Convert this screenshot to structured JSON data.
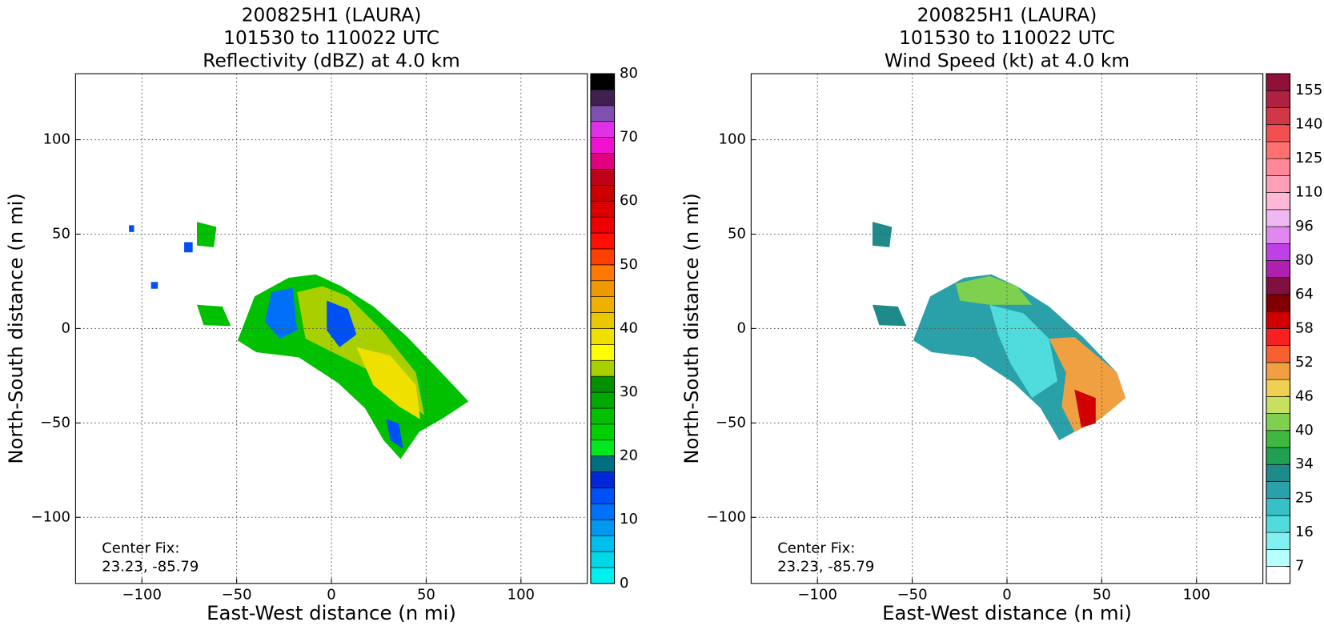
{
  "chart_data": [
    {
      "type": "heatmap",
      "title": [
        "200825H1 (LAURA)",
        "101530 to 110022 UTC",
        "Reflectivity (dBZ) at 4.0 km"
      ],
      "xlabel": "East-West distance (n mi)",
      "ylabel": "North-South distance (n mi)",
      "xlim": [
        -135,
        135
      ],
      "ylim": [
        -135,
        135
      ],
      "xticks": [
        {
          "value": -100,
          "label": "−100"
        },
        {
          "value": -50,
          "label": "−50"
        },
        0,
        50,
        100
      ],
      "yticks": [
        {
          "value": -100,
          "label": "−100"
        },
        {
          "value": -50,
          "label": "−50"
        },
        0,
        50,
        100
      ],
      "grid": true,
      "annotation": [
        "Center Fix:",
        "23.23, -85.79"
      ],
      "colorbar": {
        "bounds": [
          0,
          2.5,
          5,
          7.5,
          10,
          12.5,
          15,
          17.5,
          20,
          22.5,
          25,
          27.5,
          30,
          32.5,
          35,
          37.5,
          40,
          42.5,
          45,
          47.5,
          50,
          52.5,
          55,
          57.5,
          60,
          62.5,
          65,
          67.5,
          70,
          72.5,
          75,
          77.5,
          80
        ],
        "colors": [
          "#00f0f0",
          "#00d8e8",
          "#00c0f0",
          "#0098f0",
          "#0070f8",
          "#0050f8",
          "#0028d8",
          "#007080",
          "#00e820",
          "#00d000",
          "#00c000",
          "#00a800",
          "#009000",
          "#a8d000",
          "#ffff00",
          "#f0e000",
          "#e8c800",
          "#f0b000",
          "#f09800",
          "#ff7800",
          "#ff4000",
          "#ff1000",
          "#ee0000",
          "#dd0000",
          "#cc0000",
          "#c00018",
          "#e00080",
          "#f010d0",
          "#e030e8",
          "#8050b0",
          "#402050",
          "#000000"
        ],
        "ticks": [
          0,
          10,
          20,
          30,
          40,
          50,
          60,
          70,
          80
        ]
      }
    },
    {
      "type": "heatmap",
      "title": [
        "200825H1 (LAURA)",
        "101530 to 110022 UTC",
        "Wind Speed (kt) at 4.0 km"
      ],
      "xlabel": "East-West distance (n mi)",
      "ylabel": "North-South distance (n mi)",
      "xlim": [
        -135,
        135
      ],
      "ylim": [
        -135,
        135
      ],
      "xticks": [
        {
          "value": -100,
          "label": "−100"
        },
        {
          "value": -50,
          "label": "−50"
        },
        0,
        50,
        100
      ],
      "yticks": [
        {
          "value": -100,
          "label": "−100"
        },
        {
          "value": -50,
          "label": "−50"
        },
        0,
        50,
        100
      ],
      "grid": true,
      "annotation": [
        "Center Fix:",
        "23.23, -85.79"
      ],
      "colorbar": {
        "bounds": [
          0,
          7,
          11.5,
          16,
          20.5,
          25,
          29.5,
          34,
          37,
          40,
          43,
          46,
          49,
          52,
          55,
          58,
          61,
          64,
          72,
          80,
          88,
          96,
          103,
          110,
          117.5,
          125,
          132.5,
          140,
          147.5,
          155,
          160
        ],
        "colors": [
          "#ffffff",
          "#b8ffff",
          "#80f0f0",
          "#50dcdc",
          "#38c0c8",
          "#2aa0a8",
          "#1f8a8a",
          "#20a050",
          "#40b840",
          "#80d050",
          "#c8e060",
          "#f0d050",
          "#f0a040",
          "#f86030",
          "#f82020",
          "#d00000",
          "#800000",
          "#801040",
          "#b020b0",
          "#c040e8",
          "#e088f0",
          "#f0b8f0",
          "#ffb8d8",
          "#ffa0b8",
          "#ff8898",
          "#ff7070",
          "#f05050",
          "#d03848",
          "#b02040",
          "#901038"
        ],
        "ticks": [
          7,
          16,
          25,
          34,
          40,
          46,
          52,
          58,
          64,
          80,
          96,
          110,
          125,
          140,
          155
        ]
      }
    }
  ]
}
